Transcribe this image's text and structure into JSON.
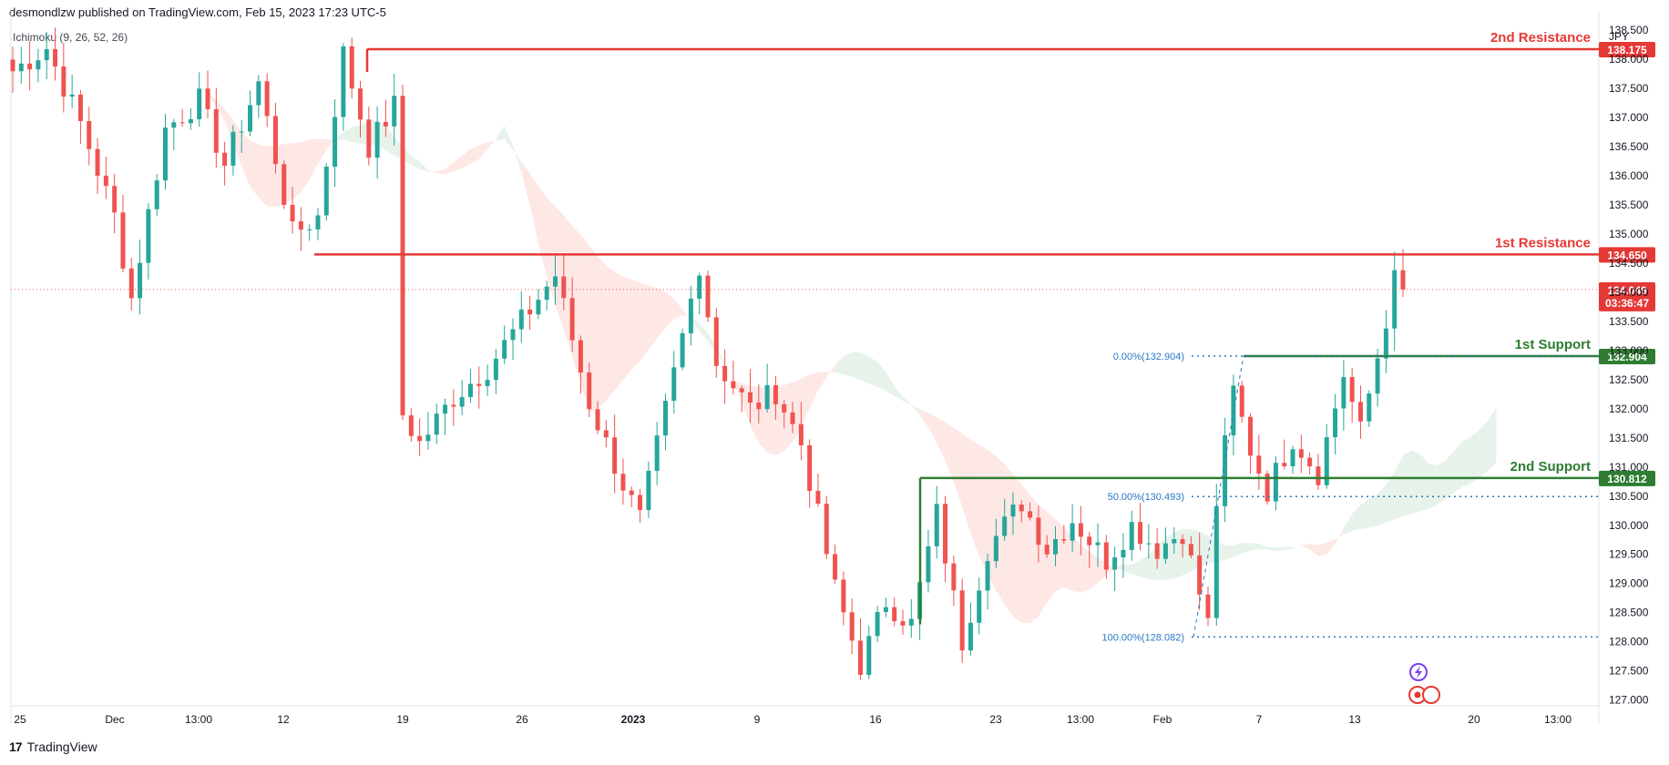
{
  "header": {
    "published": "desmondlzw published on TradingView.com, Feb 15, 2023 17:23 UTC-5",
    "indicator": "Ichimoku (9, 26, 52, 26)"
  },
  "footer": {
    "brand": "TradingView",
    "logo": "tv-logo-icon"
  },
  "colors": {
    "bull": "#26a69a",
    "bear": "#ef5350",
    "resistance": "#e53935",
    "support": "#2e7d32",
    "fib": "#2a78c4",
    "kumo_bear": "#fde4e2",
    "kumo_bull": "#e3f1e6"
  },
  "chart_data": {
    "type": "candlestick",
    "currency": "JPY",
    "ylim": [
      126.9,
      138.55
    ],
    "y_ticks": [
      "138.500",
      "138.000",
      "137.500",
      "137.000",
      "136.500",
      "136.000",
      "135.500",
      "135.000",
      "134.500",
      "134.000",
      "133.500",
      "133.000",
      "132.500",
      "132.000",
      "131.500",
      "131.000",
      "130.500",
      "130.000",
      "129.500",
      "129.000",
      "128.500",
      "128.000",
      "127.500",
      "127.000"
    ],
    "x_ticks": [
      "25",
      "Dec",
      "13:00",
      "12",
      "19",
      "26",
      "2023",
      "9",
      "16",
      "23",
      "13:00",
      "Feb",
      "7",
      "13",
      "20",
      "13:00"
    ],
    "x_tick_bold": "2023",
    "anchors": [
      [
        0,
        137.8
      ],
      [
        4,
        138.2
      ],
      [
        8,
        136.9
      ],
      [
        12,
        135.3
      ],
      [
        14,
        133.9
      ],
      [
        18,
        136.8
      ],
      [
        22,
        137.3
      ],
      [
        25,
        136.2
      ],
      [
        29,
        137.6
      ],
      [
        33,
        135.0
      ],
      [
        36,
        135.3
      ],
      [
        39,
        138.1
      ],
      [
        42,
        136.5
      ],
      [
        45,
        137.2
      ],
      [
        46,
        131.9
      ],
      [
        48,
        131.4
      ],
      [
        52,
        132.2
      ],
      [
        56,
        132.7
      ],
      [
        60,
        133.5
      ],
      [
        64,
        134.3
      ],
      [
        68,
        132.1
      ],
      [
        72,
        130.7
      ],
      [
        74,
        130.1
      ],
      [
        78,
        132.6
      ],
      [
        81,
        134.5
      ],
      [
        83,
        132.8
      ],
      [
        87,
        132.0
      ],
      [
        90,
        132.3
      ],
      [
        93,
        131.4
      ],
      [
        97,
        128.9
      ],
      [
        100,
        127.6
      ],
      [
        103,
        128.7
      ],
      [
        106,
        128.3
      ],
      [
        109,
        130.2
      ],
      [
        112,
        128.0
      ],
      [
        115,
        129.6
      ],
      [
        119,
        130.4
      ],
      [
        122,
        129.6
      ],
      [
        125,
        130.1
      ],
      [
        129,
        129.4
      ],
      [
        132,
        130.0
      ],
      [
        135,
        129.6
      ],
      [
        138,
        129.9
      ],
      [
        141,
        128.3
      ],
      [
        142,
        130.4
      ],
      [
        144,
        132.3
      ],
      [
        146,
        131.3
      ],
      [
        148,
        130.6
      ],
      [
        151,
        131.5
      ],
      [
        154,
        130.9
      ],
      [
        157,
        132.6
      ],
      [
        159,
        131.6
      ],
      [
        161,
        132.9
      ],
      [
        163,
        134.2
      ],
      [
        164,
        134.1
      ]
    ],
    "levels": [
      {
        "name": "2nd Resistance",
        "value": 138.175,
        "label": "138.175",
        "kind": "resistance"
      },
      {
        "name": "1st Resistance",
        "value": 134.65,
        "label": "134.650",
        "kind": "resistance"
      },
      {
        "name": "1st Support",
        "value": 132.904,
        "label": "132.904",
        "kind": "support"
      },
      {
        "name": "2nd Support",
        "value": 130.812,
        "label": "130.812",
        "kind": "support"
      }
    ],
    "fibonacci": [
      {
        "label": "0.00%(132.904)",
        "value": 132.904
      },
      {
        "label": "50.00%(130.493)",
        "value": 130.493
      },
      {
        "label": "100.00%(128.082)",
        "value": 128.082
      }
    ],
    "last_price": {
      "value": 134.049,
      "label": "134.049",
      "countdown": "03:36:47"
    }
  }
}
